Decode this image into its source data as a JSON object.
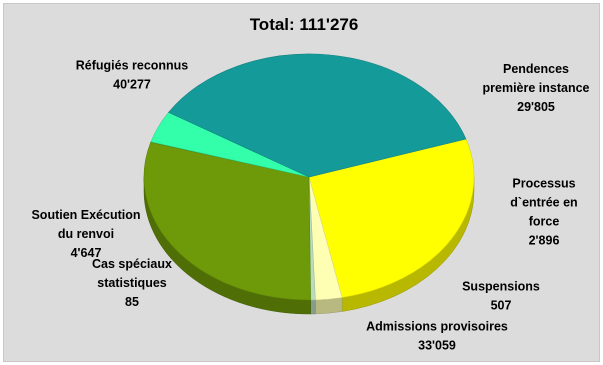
{
  "chart_data": {
    "type": "pie",
    "title": "Total: 111'276",
    "three_d": true,
    "start_angle_deg": 72,
    "slices": [
      {
        "label_lines": [
          "Pendences",
          "première instance"
        ],
        "value_text": "29'805",
        "value": 29805,
        "color": "#ffff00"
      },
      {
        "label_lines": [
          "Processus",
          "d`entrée en",
          "force"
        ],
        "value_text": "2'896",
        "value": 2896,
        "color": "#ffffb3"
      },
      {
        "label_lines": [
          "Suspensions"
        ],
        "value_text": "507",
        "value": 507,
        "color": "#b9dcc0"
      },
      {
        "label_lines": [
          "Admissions provisoires"
        ],
        "value_text": "33'059",
        "value": 33059,
        "color": "#6e9a09"
      },
      {
        "label_lines": [
          "Cas spéciaux",
          "statistiques"
        ],
        "value_text": "85",
        "value": 85,
        "color": "#5a9a1a"
      },
      {
        "label_lines": [
          "Soutien Exécution",
          "du renvoi"
        ],
        "value_text": "4'647",
        "value": 4647,
        "color": "#33ffaa"
      },
      {
        "label_lines": [
          "Réfugiés reconnus"
        ],
        "value_text": "40'277",
        "value": 40277,
        "color": "#159a9a"
      }
    ]
  }
}
